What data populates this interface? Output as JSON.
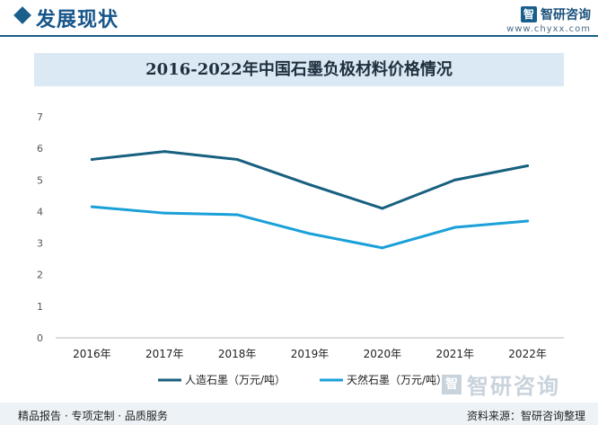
{
  "header": {
    "section_title": "发展现状",
    "brand_logo_glyph": "智",
    "brand_name": "智研咨询",
    "brand_url": "www.chyxx.com",
    "accent_color": "#1a5f8c"
  },
  "watermark": {
    "text": "智研咨询"
  },
  "footer": {
    "left_text": "精品报告 · 专项定制 · 品质服务",
    "right_text": "资料来源：智研咨询整理"
  },
  "chart_data": {
    "type": "line",
    "title": "2016-2022年中国石墨负极材料价格情况",
    "xlabel": "",
    "ylabel": "",
    "categories": [
      "2016年",
      "2017年",
      "2018年",
      "2019年",
      "2020年",
      "2021年",
      "2022年"
    ],
    "ylim": [
      0,
      7
    ],
    "yticks": [
      0,
      1,
      2,
      3,
      4,
      5,
      6,
      7
    ],
    "grid": false,
    "legend_position": "bottom",
    "series": [
      {
        "name": "人造石墨（万元/吨）",
        "color": "#17607f",
        "values": [
          5.65,
          5.9,
          5.65,
          4.85,
          4.1,
          5.0,
          5.45
        ]
      },
      {
        "name": "天然石墨（万元/吨）",
        "color": "#1aa0d8",
        "values": [
          4.15,
          3.95,
          3.9,
          3.3,
          2.85,
          3.5,
          3.7
        ]
      }
    ]
  }
}
